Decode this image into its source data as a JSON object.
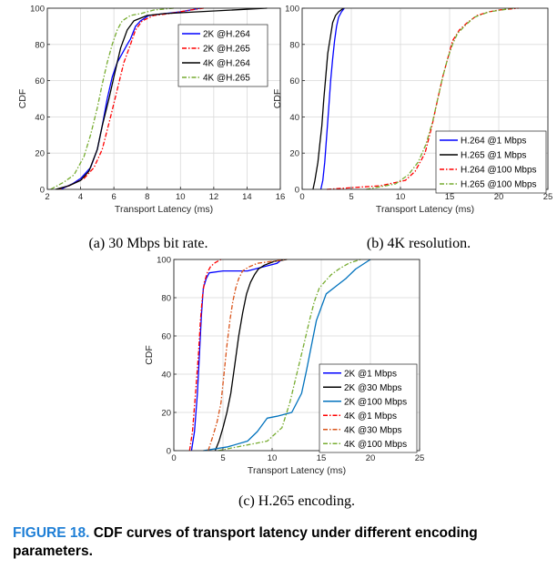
{
  "colors": {
    "blue": "#0000ff",
    "red": "#ff0000",
    "black": "#000000",
    "green": "#77ac30",
    "lightblue": "#0072bd",
    "orange": "#d95319",
    "caption_label": "#1f7fd6"
  },
  "figure": {
    "label": "FIGURE 18.",
    "caption": "CDF curves of transport latency under different encoding parameters."
  },
  "chart_data": [
    {
      "type": "line",
      "caption": "(a) 30 Mbps bit rate.",
      "xlabel": "Transport Latency (ms)",
      "ylabel": "CDF",
      "xlim": [
        2,
        16
      ],
      "ylim": [
        0,
        100
      ],
      "xticks": [
        2,
        4,
        6,
        8,
        10,
        12,
        14,
        16
      ],
      "yticks": [
        0,
        20,
        40,
        60,
        80,
        100
      ],
      "legend_position": "top-right",
      "grid": true,
      "series": [
        {
          "name": "2K @H.264",
          "color": "blue",
          "dash": "solid",
          "x": [
            2.8,
            3.5,
            4.0,
            4.6,
            5.0,
            5.3,
            5.6,
            5.9,
            6.2,
            6.5,
            6.8,
            7.0,
            7.3,
            7.6,
            8.1,
            9.0,
            10.0,
            11.2
          ],
          "y": [
            0,
            3,
            6,
            12,
            22,
            35,
            50,
            62,
            70,
            75,
            80,
            83,
            90,
            93,
            96,
            97,
            98,
            100
          ]
        },
        {
          "name": "2K @H.265",
          "color": "red",
          "dash": "dashdot",
          "x": [
            2.6,
            3.3,
            4.2,
            4.8,
            5.3,
            5.8,
            6.2,
            6.6,
            7.0,
            7.3,
            7.7,
            8.4,
            9.3,
            10.6,
            11.4
          ],
          "y": [
            0,
            2,
            6,
            12,
            22,
            40,
            55,
            70,
            80,
            88,
            93,
            96,
            97,
            99,
            100
          ]
        },
        {
          "name": "4K @H.264",
          "color": "black",
          "dash": "solid",
          "x": [
            2.5,
            3.3,
            4.0,
            4.5,
            5.0,
            5.3,
            5.7,
            6.0,
            6.4,
            6.8,
            7.2,
            8.0,
            9.0,
            11.0,
            15.2
          ],
          "y": [
            0,
            2,
            5,
            10,
            22,
            35,
            50,
            62,
            78,
            88,
            93,
            96,
            97,
            98,
            100
          ]
        },
        {
          "name": "4K @H.265",
          "color": "green",
          "dash": "dashdot",
          "x": [
            2.2,
            3.0,
            3.6,
            4.2,
            4.6,
            5.0,
            5.3,
            5.6,
            5.9,
            6.2,
            6.5,
            7.0,
            7.6,
            8.4,
            9.6
          ],
          "y": [
            0,
            4,
            8,
            18,
            30,
            45,
            58,
            70,
            80,
            88,
            93,
            96,
            97,
            99,
            100
          ]
        }
      ]
    },
    {
      "type": "line",
      "caption": "(b) 4K resolution.",
      "xlabel": "Transport Latency (ms)",
      "ylabel": "CDF",
      "xlim": [
        0,
        25
      ],
      "ylim": [
        0,
        100
      ],
      "xticks": [
        0,
        5,
        10,
        15,
        20,
        25
      ],
      "yticks": [
        0,
        20,
        40,
        60,
        80,
        100
      ],
      "legend_position": "bottom-right",
      "grid": true,
      "series": [
        {
          "name": "H.264 @1 Mbps",
          "color": "blue",
          "dash": "solid",
          "x": [
            1.9,
            2.1,
            2.3,
            2.5,
            2.7,
            2.9,
            3.1,
            3.3,
            3.5,
            3.7,
            4.0,
            4.3
          ],
          "y": [
            0,
            5,
            15,
            30,
            45,
            60,
            72,
            82,
            90,
            95,
            98,
            100
          ]
        },
        {
          "name": "H.265 @1 Mbps",
          "color": "black",
          "dash": "solid",
          "x": [
            1.1,
            1.3,
            1.6,
            1.8,
            2.0,
            2.2,
            2.4,
            2.6,
            2.9,
            3.1,
            3.4,
            3.7,
            4.2
          ],
          "y": [
            0,
            5,
            15,
            25,
            35,
            50,
            62,
            75,
            85,
            92,
            96,
            98,
            100
          ]
        },
        {
          "name": "H.264 @100 Mbps",
          "color": "red",
          "dash": "dashdot",
          "x": [
            2.5,
            8.0,
            10.5,
            11.5,
            12.5,
            13.2,
            13.8,
            14.3,
            14.8,
            15.3,
            16.0,
            16.8,
            17.8,
            19.0,
            20.0,
            22.0
          ],
          "y": [
            0,
            2,
            5,
            10,
            20,
            35,
            50,
            62,
            72,
            82,
            88,
            92,
            96,
            98,
            99,
            100
          ]
        },
        {
          "name": "H.265 @100 Mbps",
          "color": "green",
          "dash": "dashdot",
          "x": [
            6.5,
            9.5,
            10.8,
            11.8,
            12.6,
            13.3,
            13.8,
            14.3,
            14.8,
            15.3,
            15.8,
            16.5,
            17.5,
            19.0,
            21.5
          ],
          "y": [
            0,
            3,
            8,
            15,
            25,
            38,
            50,
            62,
            72,
            80,
            86,
            90,
            95,
            98,
            100
          ]
        }
      ]
    },
    {
      "type": "line",
      "caption": "(c) H.265 encoding.",
      "xlabel": "Transport Latency (ms)",
      "ylabel": "CDF",
      "xlim": [
        0,
        25
      ],
      "ylim": [
        0,
        100
      ],
      "xticks": [
        0,
        5,
        10,
        15,
        20,
        25
      ],
      "yticks": [
        0,
        20,
        40,
        60,
        80,
        100
      ],
      "legend_position": "bottom-right",
      "grid": true,
      "series": [
        {
          "name": "2K @1 Mbps",
          "color": "blue",
          "dash": "solid",
          "x": [
            1.8,
            2.1,
            2.4,
            2.6,
            2.8,
            3.0,
            3.3,
            3.6,
            5.0,
            7.5,
            9.0,
            10.5,
            11.0
          ],
          "y": [
            0,
            10,
            30,
            50,
            70,
            85,
            90,
            93,
            94,
            94,
            96,
            98,
            100
          ]
        },
        {
          "name": "2K @30 Mbps",
          "color": "black",
          "dash": "solid",
          "x": [
            4.2,
            4.6,
            5.0,
            5.4,
            5.8,
            6.2,
            6.6,
            7.0,
            7.4,
            7.8,
            8.2,
            8.6,
            9.2,
            10.2,
            11.5
          ],
          "y": [
            0,
            5,
            12,
            20,
            30,
            45,
            60,
            72,
            82,
            88,
            92,
            95,
            97,
            99,
            100
          ]
        },
        {
          "name": "2K @100 Mbps",
          "color": "lightblue",
          "dash": "solid",
          "x": [
            3.0,
            5.5,
            7.5,
            8.5,
            9.5,
            10.5,
            12.0,
            13.0,
            13.5,
            14.0,
            14.5,
            15.0,
            15.5,
            16.5,
            17.5,
            18.5,
            20.0
          ],
          "y": [
            0,
            2,
            5,
            10,
            17,
            18,
            20,
            30,
            42,
            55,
            68,
            75,
            82,
            86,
            90,
            95,
            100
          ]
        },
        {
          "name": "4K @1 Mbps",
          "color": "red",
          "dash": "dashdot",
          "x": [
            1.6,
            1.9,
            2.2,
            2.5,
            2.7,
            2.9,
            3.1,
            3.4,
            3.7,
            4.1,
            4.8
          ],
          "y": [
            0,
            10,
            30,
            50,
            68,
            80,
            88,
            93,
            96,
            98,
            100
          ]
        },
        {
          "name": "4K @30 Mbps",
          "color": "orange",
          "dash": "dashdot",
          "x": [
            3.5,
            4.0,
            4.4,
            4.8,
            5.1,
            5.4,
            5.7,
            6.0,
            6.3,
            6.6,
            7.0,
            7.6,
            8.5,
            10.0,
            11.5
          ],
          "y": [
            0,
            8,
            15,
            25,
            40,
            55,
            68,
            78,
            85,
            90,
            94,
            96,
            98,
            99,
            100
          ]
        },
        {
          "name": "4K @100 Mbps",
          "color": "green",
          "dash": "dashdot",
          "x": [
            4.5,
            7.5,
            9.5,
            11.0,
            11.8,
            12.5,
            13.2,
            13.8,
            14.3,
            14.8,
            15.3,
            16.0,
            16.8,
            17.8,
            19.0
          ],
          "y": [
            0,
            3,
            5,
            12,
            25,
            40,
            55,
            68,
            78,
            85,
            88,
            92,
            95,
            98,
            100
          ]
        }
      ]
    }
  ]
}
